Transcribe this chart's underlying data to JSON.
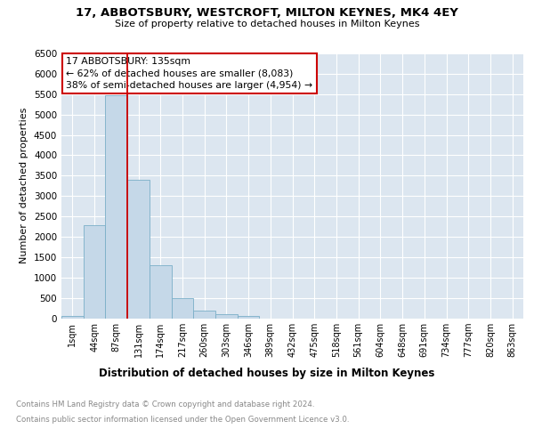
{
  "title": "17, ABBOTSBURY, WESTCROFT, MILTON KEYNES, MK4 4EY",
  "subtitle": "Size of property relative to detached houses in Milton Keynes",
  "xlabel": "Distribution of detached houses by size in Milton Keynes",
  "ylabel": "Number of detached properties",
  "bar_color": "#c5d8e8",
  "bar_edge_color": "#7aafc8",
  "background_color": "#dce6f0",
  "bin_labels": [
    "1sqm",
    "44sqm",
    "87sqm",
    "131sqm",
    "174sqm",
    "217sqm",
    "260sqm",
    "303sqm",
    "346sqm",
    "389sqm",
    "432sqm",
    "475sqm",
    "518sqm",
    "561sqm",
    "604sqm",
    "648sqm",
    "691sqm",
    "734sqm",
    "777sqm",
    "820sqm",
    "863sqm"
  ],
  "bar_values": [
    60,
    2280,
    5470,
    3400,
    1300,
    490,
    195,
    100,
    55,
    0,
    0,
    0,
    0,
    0,
    0,
    0,
    0,
    0,
    0,
    0,
    0
  ],
  "ylim": [
    0,
    6500
  ],
  "yticks": [
    0,
    500,
    1000,
    1500,
    2000,
    2500,
    3000,
    3500,
    4000,
    4500,
    5000,
    5500,
    6000,
    6500
  ],
  "annotation_title": "17 ABBOTSBURY: 135sqm",
  "annotation_line1": "← 62% of detached houses are smaller (8,083)",
  "annotation_line2": "38% of semi-detached houses are larger (4,954) →",
  "annotation_box_color": "#ffffff",
  "annotation_border_color": "#cc0000",
  "vline_x_index": 3,
  "footer_line1": "Contains HM Land Registry data © Crown copyright and database right 2024.",
  "footer_line2": "Contains public sector information licensed under the Open Government Licence v3.0."
}
